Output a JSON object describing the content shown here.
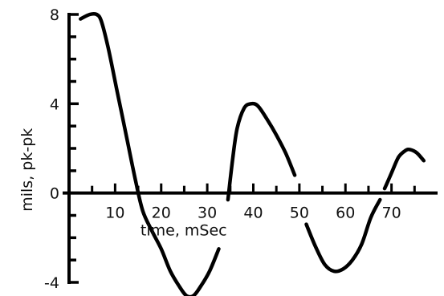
{
  "chart_data": {
    "type": "line",
    "title": "",
    "xlabel": "time, mSec",
    "ylabel": "mils, pk-pk",
    "xlim": [
      0,
      80
    ],
    "ylim": [
      -4,
      8
    ],
    "grid": false,
    "legend": "none",
    "x_ticks": [
      10,
      20,
      30,
      40,
      50,
      60,
      70
    ],
    "x_tick_labels": [
      "10",
      "20",
      "30",
      "40",
      "50",
      "60",
      "70"
    ],
    "y_ticks": [
      -4,
      0,
      4,
      8
    ],
    "y_tick_labels": [
      "-4",
      "0",
      "4",
      "8"
    ],
    "series": [
      {
        "segments": [
          [
            [
              2.5,
              7.8
            ],
            [
              4.5,
              8.0
            ],
            [
              6.0,
              8.0
            ],
            [
              7.0,
              7.7
            ],
            [
              8.5,
              6.5
            ],
            [
              10.5,
              4.5
            ],
            [
              12.5,
              2.5
            ],
            [
              14.5,
              0.5
            ],
            [
              16.0,
              -0.8
            ],
            [
              18.0,
              -1.7
            ],
            [
              20.0,
              -2.5
            ],
            [
              22.0,
              -3.5
            ],
            [
              24.0,
              -4.2
            ],
            [
              25.5,
              -4.6
            ],
            [
              27.0,
              -4.6
            ],
            [
              28.5,
              -4.2
            ],
            [
              30.5,
              -3.5
            ],
            [
              32.5,
              -2.5
            ]
          ],
          [
            [
              34.5,
              -0.3
            ],
            [
              35.5,
              1.5
            ],
            [
              36.5,
              2.9
            ],
            [
              38.0,
              3.8
            ],
            [
              39.5,
              4.0
            ],
            [
              41.0,
              3.9
            ],
            [
              43.0,
              3.3
            ],
            [
              45.0,
              2.6
            ],
            [
              47.0,
              1.8
            ],
            [
              49.0,
              0.8
            ]
          ],
          [
            [
              51.5,
              -1.4
            ],
            [
              53.5,
              -2.4
            ],
            [
              55.5,
              -3.2
            ],
            [
              57.5,
              -3.5
            ],
            [
              59.5,
              -3.4
            ],
            [
              61.5,
              -3.0
            ],
            [
              63.5,
              -2.3
            ],
            [
              65.5,
              -1.1
            ],
            [
              67.5,
              -0.3
            ]
          ],
          [
            [
              68.5,
              0.2
            ],
            [
              70.0,
              0.9
            ],
            [
              71.5,
              1.6
            ],
            [
              73.0,
              1.9
            ],
            [
              74.0,
              1.95
            ],
            [
              75.5,
              1.8
            ],
            [
              77.0,
              1.45
            ]
          ]
        ],
        "color": "#000000"
      }
    ]
  }
}
